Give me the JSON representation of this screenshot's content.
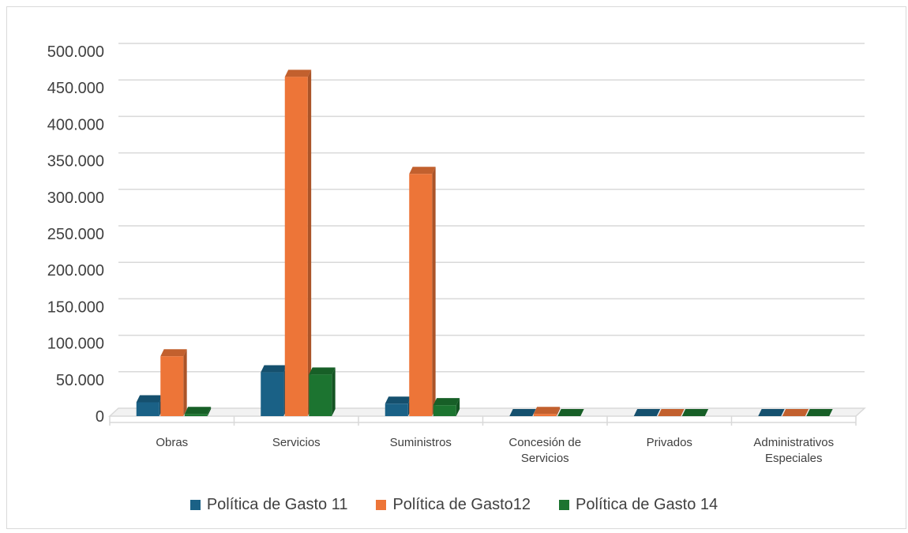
{
  "chart_data": {
    "type": "bar",
    "title": "",
    "xlabel": "",
    "ylabel": "",
    "categories": [
      [
        "Obras"
      ],
      [
        "Servicios"
      ],
      [
        "Suministros"
      ],
      [
        "Concesión de",
        "Servicios"
      ],
      [
        "Privados"
      ],
      [
        "Administrativos",
        "Especiales"
      ]
    ],
    "series": [
      {
        "name": "Política de Gasto 11",
        "color": "#1a6186",
        "values": [
          19000,
          60000,
          17000,
          0,
          0,
          0
        ]
      },
      {
        "name": "Política de Gasto12",
        "color": "#ed7538",
        "values": [
          82000,
          465000,
          332000,
          3000,
          0,
          0
        ]
      },
      {
        "name": "Política de Gasto 14",
        "color": "#1c7430",
        "values": [
          3000,
          57000,
          15000,
          0,
          0,
          0
        ]
      }
    ],
    "ylim": [
      0,
      500000
    ],
    "yticks": [
      "0",
      "50.000",
      "100.000",
      "150.000",
      "200.000",
      "250.000",
      "300.000",
      "350.000",
      "400.000",
      "450.000",
      "500.000"
    ],
    "grid": true,
    "legend_position": "bottom",
    "style": "3d-column"
  }
}
